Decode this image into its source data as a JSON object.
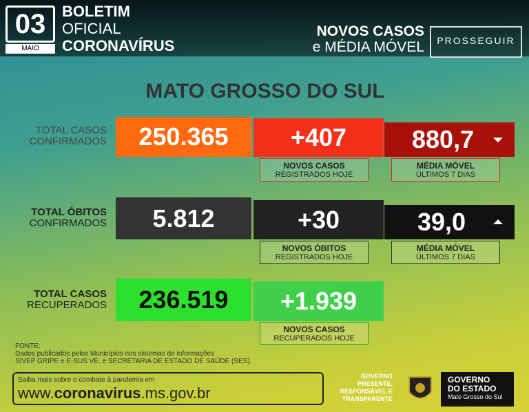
{
  "header": {
    "day": "03",
    "month": "MAIO",
    "line1": "BOLETIM",
    "line2": "OFICIAL",
    "line3": "CORONAVÍRUS",
    "right1": "NOVOS CASOS",
    "right2a": "e",
    "right2b": "MÉDIA MÓVEL",
    "logo": "PROSSEGUIR"
  },
  "region": "MATO GROSSO DO SUL",
  "rows": [
    {
      "label1": "TOTAL CASOS",
      "label2": "CONFIRMADOS",
      "total": "250.365",
      "new": "+407",
      "new_label1": "NOVOS CASOS",
      "new_label2": "REGISTRADOS HOJE",
      "avg": "880,7",
      "avg_label1": "MÉDIA MÓVEL",
      "avg_label2": "ÚLTIMOS 7 DIAS"
    },
    {
      "label1": "TOTAL ÓBITOS",
      "label2": "CONFIRMADOS",
      "total": "5.812",
      "new": "+30",
      "new_label1": "NOVOS ÓBITOS",
      "new_label2": "REGISTRADOS HOJE",
      "avg": "39,0",
      "avg_label1": "MÉDIA MÓVEL",
      "avg_label2": "ÚLTIMOS 7 DIAS"
    },
    {
      "label1": "TOTAL CASOS",
      "label2": "RECUPERADOS",
      "total": "236.519",
      "new": "+1.939",
      "new_label1": "NOVOS CASOS",
      "new_label2": "RECUPERADOS HOJE"
    }
  ],
  "source": {
    "title": "FONTE:",
    "line1": "Dados publicados pelos Municípios nos sistemas de informações",
    "line2": "SIVEP GRIPE e E-SUS VE. e SECRETARIA DE ESTADO DE SAÚDE (SES)."
  },
  "footer": {
    "more": "Saiba mais sobre o combate à pandemia em",
    "url_prefix": "www.",
    "url_main": "coronavirus",
    "url_suffix": ".ms.gov.br",
    "motto1": "GOVERNO",
    "motto2": "PRESENTE,",
    "motto3": "RESPONSÁVEL E",
    "motto4": "TRANSPARENTE",
    "gov1": "GOVERNO",
    "gov2": "DO ESTADO",
    "gov3": "Mato Grosso do Sul"
  }
}
